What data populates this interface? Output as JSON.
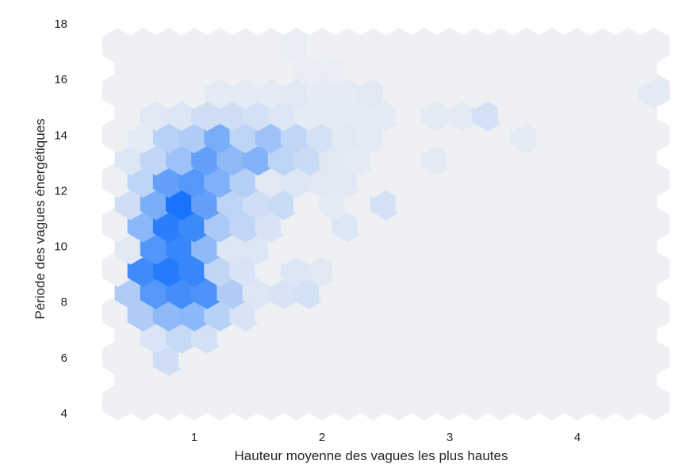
{
  "chart_data": {
    "type": "hexbin",
    "title": "",
    "xlabel": "Hauteur moyenne des vagues les plus hautes",
    "ylabel": "Période des vagues énergétiques",
    "xlim": [
      0.2,
      4.6
    ],
    "ylim": [
      4.0,
      18.0
    ],
    "x_ticks": [
      1,
      2,
      3,
      4
    ],
    "y_ticks": [
      4,
      6,
      8,
      10,
      12,
      14,
      16,
      18
    ],
    "grid": false,
    "colors": {
      "low": "#eef0f4",
      "high": "#0f6ffc"
    },
    "value_range": [
      0,
      1
    ],
    "value_note": "relative density 0-1",
    "hex_grid": {
      "x_step": 0.2,
      "y_step": 0.8,
      "x_start": 0.4,
      "y_start": 4.4,
      "rows": 17,
      "cols": 22
    },
    "hexes": [
      {
        "x": 0.8,
        "y": 6.0,
        "v": 0.14
      },
      {
        "x": 0.9,
        "y": 6.8,
        "v": 0.18
      },
      {
        "x": 1.1,
        "y": 6.8,
        "v": 0.12
      },
      {
        "x": 0.7,
        "y": 6.8,
        "v": 0.09
      },
      {
        "x": 0.6,
        "y": 7.6,
        "v": 0.28
      },
      {
        "x": 0.8,
        "y": 7.6,
        "v": 0.42
      },
      {
        "x": 1.0,
        "y": 7.6,
        "v": 0.44
      },
      {
        "x": 1.2,
        "y": 7.6,
        "v": 0.24
      },
      {
        "x": 1.4,
        "y": 7.6,
        "v": 0.1
      },
      {
        "x": 0.5,
        "y": 8.4,
        "v": 0.28
      },
      {
        "x": 0.7,
        "y": 8.4,
        "v": 0.68
      },
      {
        "x": 0.9,
        "y": 8.4,
        "v": 0.76
      },
      {
        "x": 1.1,
        "y": 8.4,
        "v": 0.72
      },
      {
        "x": 1.3,
        "y": 8.4,
        "v": 0.28
      },
      {
        "x": 1.5,
        "y": 8.4,
        "v": 0.08
      },
      {
        "x": 1.7,
        "y": 8.4,
        "v": 0.1
      },
      {
        "x": 1.9,
        "y": 8.4,
        "v": 0.12
      },
      {
        "x": 0.6,
        "y": 9.2,
        "v": 0.78
      },
      {
        "x": 0.8,
        "y": 9.2,
        "v": 0.9
      },
      {
        "x": 1.0,
        "y": 9.2,
        "v": 0.82
      },
      {
        "x": 1.2,
        "y": 9.2,
        "v": 0.2
      },
      {
        "x": 1.4,
        "y": 9.2,
        "v": 0.1
      },
      {
        "x": 1.8,
        "y": 9.2,
        "v": 0.08
      },
      {
        "x": 2.0,
        "y": 9.2,
        "v": 0.06
      },
      {
        "x": 0.5,
        "y": 10.0,
        "v": 0.06
      },
      {
        "x": 0.7,
        "y": 10.0,
        "v": 0.7
      },
      {
        "x": 0.9,
        "y": 10.0,
        "v": 0.82
      },
      {
        "x": 1.1,
        "y": 10.0,
        "v": 0.42
      },
      {
        "x": 1.3,
        "y": 10.0,
        "v": 0.08
      },
      {
        "x": 1.5,
        "y": 10.0,
        "v": 0.08
      },
      {
        "x": 0.6,
        "y": 10.8,
        "v": 0.44
      },
      {
        "x": 0.8,
        "y": 10.8,
        "v": 0.88
      },
      {
        "x": 1.0,
        "y": 10.8,
        "v": 0.8
      },
      {
        "x": 1.2,
        "y": 10.8,
        "v": 0.3
      },
      {
        "x": 1.4,
        "y": 10.8,
        "v": 0.2
      },
      {
        "x": 1.6,
        "y": 10.8,
        "v": 0.1
      },
      {
        "x": 2.2,
        "y": 10.8,
        "v": 0.08
      },
      {
        "x": 0.5,
        "y": 11.6,
        "v": 0.14
      },
      {
        "x": 0.7,
        "y": 11.6,
        "v": 0.52
      },
      {
        "x": 0.9,
        "y": 11.6,
        "v": 0.96
      },
      {
        "x": 1.1,
        "y": 11.6,
        "v": 0.62
      },
      {
        "x": 1.3,
        "y": 11.6,
        "v": 0.22
      },
      {
        "x": 1.5,
        "y": 11.6,
        "v": 0.14
      },
      {
        "x": 1.7,
        "y": 11.6,
        "v": 0.16
      },
      {
        "x": 2.1,
        "y": 11.6,
        "v": 0.04
      },
      {
        "x": 2.5,
        "y": 11.6,
        "v": 0.12
      },
      {
        "x": 0.6,
        "y": 12.4,
        "v": 0.22
      },
      {
        "x": 0.8,
        "y": 12.4,
        "v": 0.62
      },
      {
        "x": 1.0,
        "y": 12.4,
        "v": 0.68
      },
      {
        "x": 1.2,
        "y": 12.4,
        "v": 0.5
      },
      {
        "x": 1.4,
        "y": 12.4,
        "v": 0.26
      },
      {
        "x": 1.6,
        "y": 12.4,
        "v": 0.06
      },
      {
        "x": 1.8,
        "y": 12.4,
        "v": 0.08
      },
      {
        "x": 2.0,
        "y": 12.4,
        "v": 0.06
      },
      {
        "x": 2.2,
        "y": 12.4,
        "v": 0.06
      },
      {
        "x": 0.5,
        "y": 13.2,
        "v": 0.08
      },
      {
        "x": 0.7,
        "y": 13.2,
        "v": 0.2
      },
      {
        "x": 0.9,
        "y": 13.2,
        "v": 0.36
      },
      {
        "x": 1.1,
        "y": 13.2,
        "v": 0.62
      },
      {
        "x": 1.3,
        "y": 13.2,
        "v": 0.42
      },
      {
        "x": 1.5,
        "y": 13.2,
        "v": 0.48
      },
      {
        "x": 1.7,
        "y": 13.2,
        "v": 0.22
      },
      {
        "x": 1.9,
        "y": 13.2,
        "v": 0.16
      },
      {
        "x": 2.1,
        "y": 13.2,
        "v": 0.06
      },
      {
        "x": 2.3,
        "y": 13.2,
        "v": 0.04
      },
      {
        "x": 2.9,
        "y": 13.2,
        "v": 0.04
      },
      {
        "x": 0.6,
        "y": 14.0,
        "v": 0.04
      },
      {
        "x": 0.8,
        "y": 14.0,
        "v": 0.24
      },
      {
        "x": 1.0,
        "y": 14.0,
        "v": 0.28
      },
      {
        "x": 1.2,
        "y": 14.0,
        "v": 0.52
      },
      {
        "x": 1.4,
        "y": 14.0,
        "v": 0.22
      },
      {
        "x": 1.6,
        "y": 14.0,
        "v": 0.36
      },
      {
        "x": 1.8,
        "y": 14.0,
        "v": 0.2
      },
      {
        "x": 2.0,
        "y": 14.0,
        "v": 0.12
      },
      {
        "x": 2.2,
        "y": 14.0,
        "v": 0.06
      },
      {
        "x": 2.4,
        "y": 14.0,
        "v": 0.04
      },
      {
        "x": 3.6,
        "y": 14.0,
        "v": 0.04
      },
      {
        "x": 0.7,
        "y": 14.8,
        "v": 0.06
      },
      {
        "x": 0.9,
        "y": 14.8,
        "v": 0.08
      },
      {
        "x": 1.1,
        "y": 14.8,
        "v": 0.14
      },
      {
        "x": 1.3,
        "y": 14.8,
        "v": 0.14
      },
      {
        "x": 1.5,
        "y": 14.8,
        "v": 0.12
      },
      {
        "x": 1.7,
        "y": 14.8,
        "v": 0.08
      },
      {
        "x": 1.9,
        "y": 14.8,
        "v": 0.04
      },
      {
        "x": 2.1,
        "y": 14.8,
        "v": 0.04
      },
      {
        "x": 2.3,
        "y": 14.8,
        "v": 0.04
      },
      {
        "x": 2.5,
        "y": 14.8,
        "v": 0.04
      },
      {
        "x": 2.9,
        "y": 14.8,
        "v": 0.04
      },
      {
        "x": 3.1,
        "y": 14.8,
        "v": 0.04
      },
      {
        "x": 3.3,
        "y": 14.8,
        "v": 0.12
      },
      {
        "x": 1.2,
        "y": 15.6,
        "v": 0.04
      },
      {
        "x": 1.4,
        "y": 15.6,
        "v": 0.04
      },
      {
        "x": 1.6,
        "y": 15.6,
        "v": 0.04
      },
      {
        "x": 1.8,
        "y": 15.6,
        "v": 0.06
      },
      {
        "x": 2.0,
        "y": 15.6,
        "v": 0.04
      },
      {
        "x": 2.2,
        "y": 15.6,
        "v": 0.04
      },
      {
        "x": 2.4,
        "y": 15.6,
        "v": 0.06
      },
      {
        "x": 4.6,
        "y": 15.6,
        "v": 0.04
      },
      {
        "x": 1.9,
        "y": 16.4,
        "v": 0.02
      },
      {
        "x": 2.1,
        "y": 16.4,
        "v": 0.02
      },
      {
        "x": 1.8,
        "y": 17.2,
        "v": 0.02
      }
    ]
  }
}
